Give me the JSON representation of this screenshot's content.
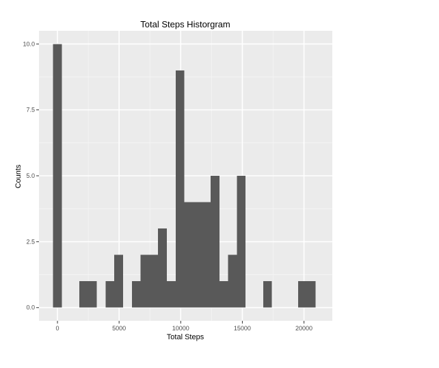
{
  "chart_data": {
    "type": "bar",
    "title": "Total Steps Historgram",
    "xlabel": "Total Steps",
    "ylabel": "Counts",
    "bin_width": 710,
    "x_ticks": [
      0,
      5000,
      10000,
      15000,
      20000
    ],
    "x_tick_labels": [
      "0",
      "5000",
      "10000",
      "15000",
      "20000"
    ],
    "y_ticks": [
      0,
      2.5,
      5,
      7.5,
      10
    ],
    "y_tick_labels": [
      "0.0",
      "2.5",
      "5.0",
      "7.5",
      "10.0"
    ],
    "xlim": [
      -1500,
      22300
    ],
    "ylim": [
      -0.5,
      10.5
    ],
    "bins": [
      {
        "x_start": -355,
        "x_end": 355,
        "count": 10
      },
      {
        "x_start": 1775,
        "x_end": 2485,
        "count": 1
      },
      {
        "x_start": 2485,
        "x_end": 3195,
        "count": 1
      },
      {
        "x_start": 3905,
        "x_end": 4615,
        "count": 1
      },
      {
        "x_start": 4615,
        "x_end": 5325,
        "count": 2
      },
      {
        "x_start": 6035,
        "x_end": 6745,
        "count": 1
      },
      {
        "x_start": 6745,
        "x_end": 7455,
        "count": 2
      },
      {
        "x_start": 7455,
        "x_end": 8165,
        "count": 2
      },
      {
        "x_start": 8165,
        "x_end": 8875,
        "count": 3
      },
      {
        "x_start": 8875,
        "x_end": 9585,
        "count": 1
      },
      {
        "x_start": 9585,
        "x_end": 10295,
        "count": 9
      },
      {
        "x_start": 10295,
        "x_end": 11005,
        "count": 4
      },
      {
        "x_start": 11005,
        "x_end": 11715,
        "count": 4
      },
      {
        "x_start": 11715,
        "x_end": 12425,
        "count": 4
      },
      {
        "x_start": 12425,
        "x_end": 13135,
        "count": 5
      },
      {
        "x_start": 13135,
        "x_end": 13845,
        "count": 1
      },
      {
        "x_start": 13845,
        "x_end": 14555,
        "count": 2
      },
      {
        "x_start": 14555,
        "x_end": 15265,
        "count": 5
      },
      {
        "x_start": 16685,
        "x_end": 17395,
        "count": 1
      },
      {
        "x_start": 19525,
        "x_end": 20235,
        "count": 1
      },
      {
        "x_start": 20235,
        "x_end": 20945,
        "count": 1
      }
    ],
    "grid": true
  },
  "colors": {
    "panel_background": "#ebebeb",
    "grid_major": "#ffffff",
    "grid_minor": "#f5f5f5",
    "bar_fill": "#595959",
    "text": "#000000",
    "tick_text": "#4d4d4d",
    "tick_mark": "#333333"
  }
}
